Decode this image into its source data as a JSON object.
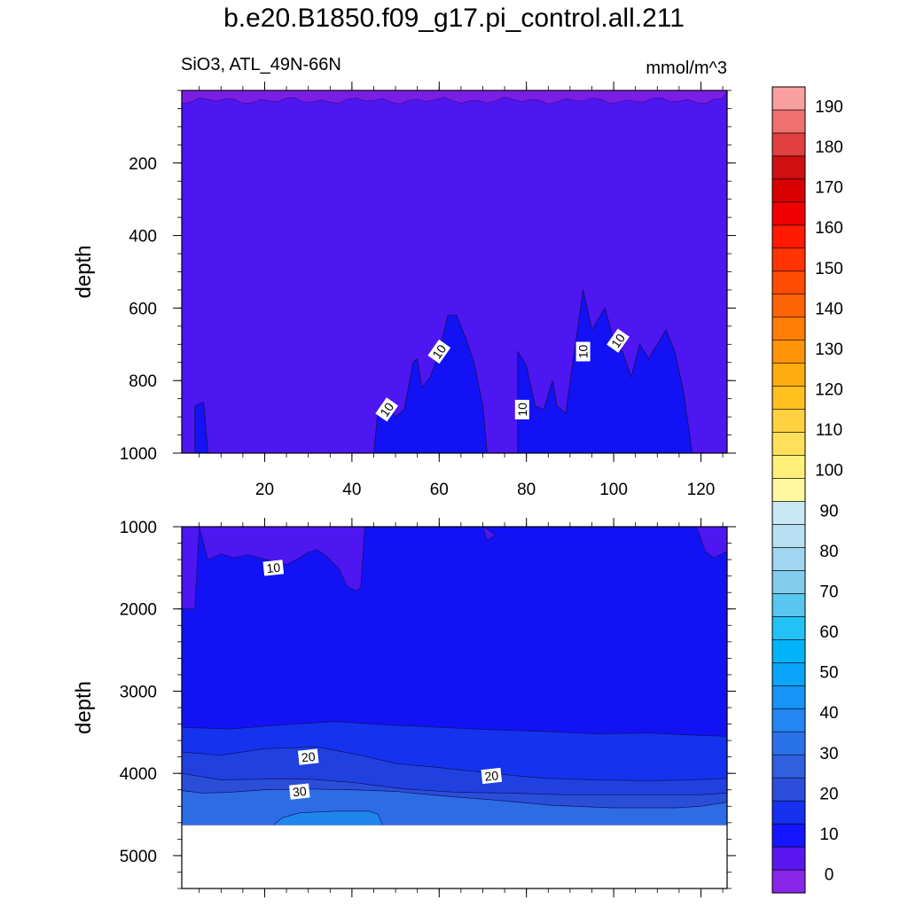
{
  "title": "b.e20.B1850.f09_g17.pi_control.all.211",
  "subtitle_left": "SiO3, ATL_49N-66N",
  "subtitle_right": "mmol/m^3",
  "colors": {
    "background_fill": "#4e16f0",
    "band_10_20": "#1212f5",
    "band_20_25": "#1532ee",
    "band_25_30": "#2a4ed8",
    "band_30_35": "#2d6ce4",
    "band_35_40": "#1f86ee",
    "missing": "#ffffff"
  },
  "chart_data": {
    "type": "contour",
    "variable": "SiO3",
    "region": "ATL_49N-66N",
    "units": "mmol/m^3",
    "x_ticks": [
      20,
      40,
      60,
      80,
      100,
      120
    ],
    "x_range": [
      1,
      126
    ],
    "upper_panel": {
      "ylabel": "depth",
      "y_range": [
        0,
        1000
      ],
      "y_ticks": [
        200,
        400,
        600,
        800,
        1000
      ],
      "contour_labels": [
        {
          "text": "10",
          "x": 48,
          "y": 880
        },
        {
          "text": "10",
          "x": 60,
          "y": 720
        },
        {
          "text": "10",
          "x": 79,
          "y": 880
        },
        {
          "text": "10",
          "x": 93,
          "y": 720
        },
        {
          "text": "10",
          "x": 101,
          "y": 690
        }
      ],
      "level_10_boundary": [
        [
          4,
          1000
        ],
        [
          4,
          870
        ],
        [
          6,
          860
        ],
        [
          7,
          1000
        ],
        [
          45,
          1000
        ],
        [
          46,
          880
        ],
        [
          48,
          860
        ],
        [
          50,
          900
        ],
        [
          52,
          880
        ],
        [
          54,
          750
        ],
        [
          55,
          740
        ],
        [
          56,
          820
        ],
        [
          58,
          790
        ],
        [
          60,
          720
        ],
        [
          62,
          620
        ],
        [
          64,
          620
        ],
        [
          66,
          680
        ],
        [
          68,
          750
        ],
        [
          70,
          870
        ],
        [
          71,
          1000
        ],
        [
          78,
          1000
        ],
        [
          78,
          720
        ],
        [
          80,
          760
        ],
        [
          82,
          870
        ],
        [
          84,
          880
        ],
        [
          86,
          800
        ],
        [
          87,
          870
        ],
        [
          89,
          890
        ],
        [
          91,
          720
        ],
        [
          93,
          550
        ],
        [
          95,
          660
        ],
        [
          98,
          600
        ],
        [
          100,
          690
        ],
        [
          102,
          720
        ],
        [
          104,
          790
        ],
        [
          106,
          700
        ],
        [
          108,
          740
        ],
        [
          110,
          700
        ],
        [
          112,
          660
        ],
        [
          114,
          720
        ],
        [
          116,
          830
        ],
        [
          118,
          1000
        ]
      ]
    },
    "lower_panel": {
      "ylabel": "depth",
      "y_range": [
        1000,
        5400
      ],
      "y_ticks": [
        1000,
        2000,
        3000,
        4000,
        5000
      ],
      "missing_below_depth": 4630,
      "contour_labels": [
        {
          "text": "10",
          "x": 22,
          "y": 1500
        },
        {
          "text": "20",
          "x": 30,
          "y": 3800
        },
        {
          "text": "20",
          "x": 72,
          "y": 4030
        },
        {
          "text": "30",
          "x": 28,
          "y": 4220
        }
      ],
      "level_10_top_boundary": [
        [
          4,
          2000
        ],
        [
          5,
          1000
        ],
        [
          7,
          1400
        ],
        [
          10,
          1330
        ],
        [
          13,
          1380
        ],
        [
          16,
          1340
        ],
        [
          19,
          1380
        ],
        [
          22,
          1420
        ],
        [
          25,
          1460
        ],
        [
          28,
          1380
        ],
        [
          30,
          1310
        ],
        [
          32,
          1280
        ],
        [
          34,
          1350
        ],
        [
          37,
          1510
        ],
        [
          39,
          1730
        ],
        [
          41,
          1780
        ],
        [
          42,
          1740
        ],
        [
          43,
          1000
        ],
        [
          70,
          1000
        ],
        [
          71,
          1170
        ],
        [
          73,
          1100
        ],
        [
          75,
          1000
        ],
        [
          119,
          1000
        ],
        [
          121,
          1300
        ],
        [
          123,
          1380
        ],
        [
          126,
          1300
        ]
      ],
      "level_20_depth": [
        [
          1,
          3440
        ],
        [
          12,
          3460
        ],
        [
          24,
          3410
        ],
        [
          36,
          3370
        ],
        [
          48,
          3410
        ],
        [
          60,
          3440
        ],
        [
          72,
          3470
        ],
        [
          84,
          3490
        ],
        [
          96,
          3520
        ],
        [
          108,
          3510
        ],
        [
          120,
          3540
        ],
        [
          126,
          3550
        ]
      ],
      "level_25_depth": [
        [
          1,
          3740
        ],
        [
          10,
          3780
        ],
        [
          20,
          3700
        ],
        [
          32,
          3680
        ],
        [
          42,
          3780
        ],
        [
          50,
          3880
        ],
        [
          60,
          3930
        ],
        [
          72,
          4000
        ],
        [
          84,
          4060
        ],
        [
          96,
          4080
        ],
        [
          108,
          4090
        ],
        [
          118,
          4080
        ],
        [
          126,
          4060
        ]
      ],
      "level_30_depth": [
        [
          1,
          4000
        ],
        [
          10,
          4080
        ],
        [
          20,
          4070
        ],
        [
          30,
          4070
        ],
        [
          40,
          4110
        ],
        [
          52,
          4190
        ],
        [
          64,
          4230
        ],
        [
          76,
          4240
        ],
        [
          88,
          4260
        ],
        [
          100,
          4260
        ],
        [
          112,
          4260
        ],
        [
          120,
          4260
        ],
        [
          126,
          4240
        ]
      ],
      "level_35_depth": [
        [
          1,
          4210
        ],
        [
          6,
          4240
        ],
        [
          12,
          4230
        ],
        [
          20,
          4200
        ],
        [
          30,
          4190
        ],
        [
          40,
          4200
        ],
        [
          50,
          4220
        ],
        [
          62,
          4280
        ],
        [
          74,
          4330
        ],
        [
          86,
          4390
        ],
        [
          100,
          4420
        ],
        [
          114,
          4420
        ],
        [
          120,
          4400
        ],
        [
          126,
          4350
        ]
      ],
      "level_40_patch": [
        [
          22,
          4630
        ],
        [
          24,
          4540
        ],
        [
          28,
          4480
        ],
        [
          36,
          4460
        ],
        [
          44,
          4460
        ],
        [
          46,
          4500
        ],
        [
          47,
          4630
        ]
      ]
    },
    "colorbar": {
      "labels": [
        "0",
        "10",
        "20",
        "30",
        "40",
        "50",
        "60",
        "70",
        "80",
        "90",
        "100",
        "110",
        "120",
        "130",
        "140",
        "150",
        "160",
        "170",
        "180",
        "190"
      ],
      "colors": [
        "#8826e8",
        "#5a16ee",
        "#1515ff",
        "#1530ef",
        "#2b4edb",
        "#3060e0",
        "#2a72ea",
        "#2386f2",
        "#1694f8",
        "#0aa4fa",
        "#00b4fa",
        "#22c2f6",
        "#58c6ee",
        "#84cceb",
        "#a0d6ef",
        "#b8e0f2",
        "#c8e8f5",
        "#fff8a0",
        "#fff07a",
        "#ffe05a",
        "#ffd040",
        "#ffc020",
        "#ffac10",
        "#ff9408",
        "#ff7c05",
        "#ff6404",
        "#ff4c03",
        "#ff3402",
        "#ff1a01",
        "#f00000",
        "#d80000",
        "#d01010",
        "#e04040",
        "#f07070",
        "#f8a0a0"
      ]
    }
  }
}
